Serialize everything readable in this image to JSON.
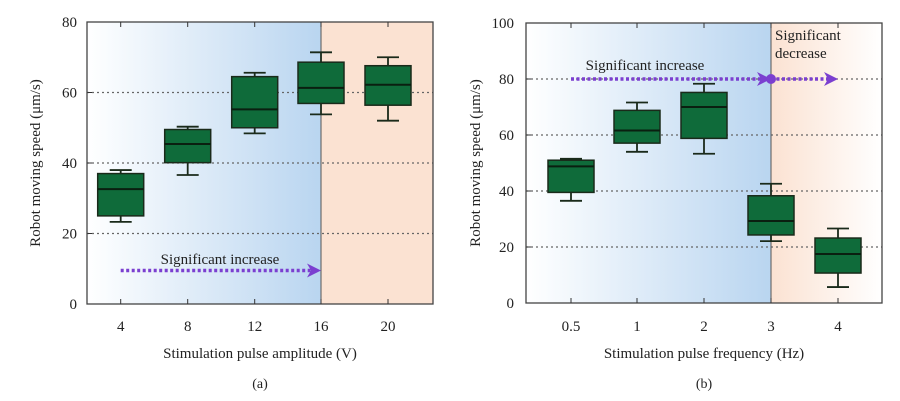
{
  "colors": {
    "box_fill": "#0f6b3a",
    "box_stroke": "#1a2a1a",
    "increase_shade": "#b9d5f0",
    "decrease_shade": "#fbe2d2",
    "arrow": "#7b3fd0",
    "grid": "#666666"
  },
  "chart_data": [
    {
      "type": "box",
      "panel_label": "(a)",
      "xlabel": "Stimulation pulse amplitude (V)",
      "ylabel": "Robot moving speed (μm/s)",
      "ylim": [
        0,
        80
      ],
      "yticks": [
        0,
        20,
        40,
        60,
        80
      ],
      "grid": "horizontal dotted",
      "categories": [
        "4",
        "8",
        "12",
        "16",
        "20"
      ],
      "boxes": [
        {
          "min": 23.3,
          "q1": 25,
          "median": 32.6,
          "q3": 37,
          "max": 38
        },
        {
          "min": 36.6,
          "q1": 40.1,
          "median": 45.4,
          "q3": 49.5,
          "max": 50.3
        },
        {
          "min": 48.4,
          "q1": 50,
          "median": 55.2,
          "q3": 64.5,
          "max": 65.6
        },
        {
          "min": 53.8,
          "q1": 56.9,
          "median": 61.3,
          "q3": 68.6,
          "max": 71.4
        },
        {
          "min": 52,
          "q1": 56.4,
          "median": 62.2,
          "q3": 67.6,
          "max": 70
        }
      ],
      "regions": [
        {
          "kind": "increase",
          "until_category": "16"
        },
        {
          "kind": "decrease",
          "from_category": "16"
        }
      ],
      "annotations": [
        {
          "text": "Significant increase",
          "arrow_from": "4",
          "arrow_to": "16",
          "y": 9.5,
          "dot_at_end": false
        }
      ]
    },
    {
      "type": "box",
      "panel_label": "(b)",
      "xlabel": "Stimulation pulse frequency (Hz)",
      "ylabel": "Robot moving speed (μm/s)",
      "ylim": [
        0,
        100
      ],
      "yticks": [
        0,
        20,
        40,
        60,
        80,
        100
      ],
      "grid": "horizontal dotted",
      "categories": [
        "0.5",
        "1",
        "2",
        "3",
        "4"
      ],
      "boxes": [
        {
          "min": 36.5,
          "q1": 39.5,
          "median": 48.8,
          "q3": 51,
          "max": 51.5
        },
        {
          "min": 54,
          "q1": 57.1,
          "median": 61.6,
          "q3": 68.8,
          "max": 71.6
        },
        {
          "min": 53.3,
          "q1": 58.8,
          "median": 70,
          "q3": 75.2,
          "max": 78.3
        },
        {
          "min": 22.1,
          "q1": 24.3,
          "median": 29.3,
          "q3": 38.3,
          "max": 42.6
        },
        {
          "min": 5.7,
          "q1": 10.7,
          "median": 17.5,
          "q3": 23.2,
          "max": 26.6
        }
      ],
      "regions": [
        {
          "kind": "increase",
          "until_category": "3"
        },
        {
          "kind": "decrease",
          "from_category": "3"
        }
      ],
      "annotations": [
        {
          "text": "Significant increase",
          "arrow_from": "0.5",
          "arrow_to": "3",
          "y": 80,
          "dot_at_end": true
        },
        {
          "text": "Significant decrease",
          "arrow_from": "3",
          "arrow_to": "4",
          "y": 80,
          "dot_at_end": false
        }
      ]
    }
  ]
}
